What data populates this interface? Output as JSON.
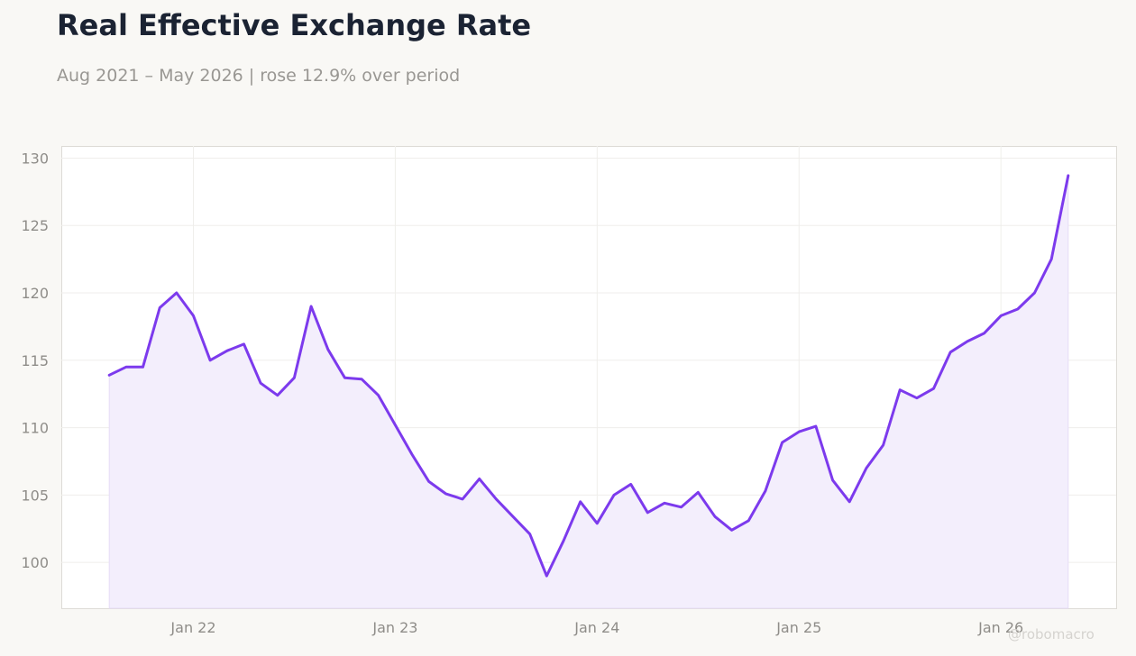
{
  "header": {
    "title": "Real Effective Exchange Rate",
    "subtitle": "Aug 2021 – May 2026 | rose 12.9% over period"
  },
  "watermark": "@robomacro",
  "chart_data": {
    "type": "area",
    "title": "Real Effective Exchange Rate",
    "subtitle": "Aug 2021 – May 2026 | rose 12.9% over period",
    "xlabel": "",
    "ylabel": "",
    "x_start": "2021-08",
    "x_end": "2026-05",
    "x_ticks": [
      {
        "label": "Jan 22",
        "date": "2022-01"
      },
      {
        "label": "Jan 23",
        "date": "2023-01"
      },
      {
        "label": "Jan 24",
        "date": "2024-01"
      },
      {
        "label": "Jan 25",
        "date": "2025-01"
      },
      {
        "label": "Jan 26",
        "date": "2026-01"
      }
    ],
    "y_ticks": [
      100,
      105,
      110,
      115,
      120,
      125,
      130
    ],
    "ylim": [
      96.6,
      130.9
    ],
    "grid": true,
    "line_color": "#7c3aed",
    "fill_color": "#f3eefc",
    "series": [
      {
        "x": [
          "2021-08",
          "2021-09",
          "2021-10",
          "2021-11",
          "2021-12",
          "2022-01",
          "2022-02",
          "2022-03",
          "2022-04",
          "2022-05",
          "2022-06",
          "2022-07",
          "2022-08",
          "2022-09",
          "2022-10",
          "2022-11",
          "2022-12",
          "2023-01",
          "2023-02",
          "2023-03",
          "2023-04",
          "2023-05",
          "2023-06",
          "2023-07",
          "2023-08",
          "2023-09",
          "2023-10",
          "2023-11",
          "2023-12",
          "2024-01",
          "2024-02",
          "2024-03",
          "2024-04",
          "2024-05",
          "2024-06",
          "2024-07",
          "2024-08",
          "2024-09",
          "2024-10",
          "2024-11",
          "2024-12",
          "2025-01",
          "2025-02",
          "2025-03",
          "2025-04",
          "2025-05",
          "2025-06",
          "2025-07",
          "2025-08",
          "2025-09",
          "2025-10",
          "2025-11",
          "2025-12",
          "2026-01",
          "2026-02",
          "2026-03",
          "2026-04",
          "2026-05"
        ],
        "values": [
          113.9,
          114.5,
          114.5,
          118.9,
          120.0,
          118.3,
          115.0,
          115.7,
          116.2,
          113.3,
          112.4,
          113.7,
          119.0,
          115.8,
          113.7,
          113.6,
          112.4,
          110.2,
          108.0,
          106.0,
          105.1,
          104.7,
          106.2,
          104.7,
          103.4,
          102.1,
          99.0,
          101.6,
          104.5,
          102.9,
          105.0,
          105.8,
          103.7,
          104.4,
          104.1,
          105.2,
          103.4,
          102.4,
          103.1,
          105.3,
          108.9,
          109.7,
          110.1,
          106.1,
          104.5,
          107.0,
          108.7,
          112.8,
          112.2,
          112.9,
          115.6,
          116.4,
          117.0,
          118.3,
          118.8,
          120.0,
          122.5,
          128.7
        ]
      }
    ]
  }
}
